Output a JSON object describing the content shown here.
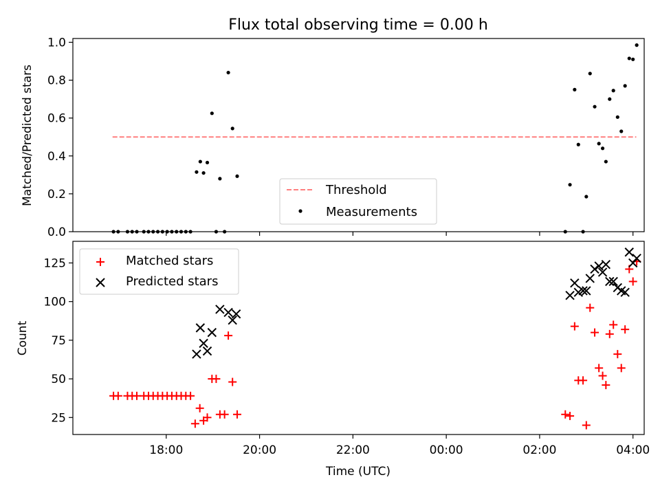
{
  "title": "Flux total observing time = 0.00 h",
  "chart_data": [
    {
      "type": "scatter",
      "panel": "top",
      "title": "Flux total observing time = 0.00 h",
      "xlabel": "",
      "ylabel": "Matched/Predicted stars",
      "ylim": [
        0,
        1.02
      ],
      "yticks": [
        0.0,
        0.2,
        0.4,
        0.6,
        0.8,
        1.0
      ],
      "ytick_labels": [
        "0.0",
        "0.2",
        "0.4",
        "0.6",
        "0.8",
        "1.0"
      ],
      "x_unit": "hours since 16:00 UTC",
      "xlim": [
        0.0,
        12.24
      ],
      "xticks": [
        2,
        4,
        6,
        8,
        10,
        12
      ],
      "grid": false,
      "legend": {
        "placement": "lower-center",
        "entries": [
          {
            "name": "Threshold",
            "color": "#ff7f7f",
            "style": "dashed-line"
          },
          {
            "name": "Measurements",
            "color": "#000000",
            "style": "dot"
          }
        ]
      },
      "threshold": {
        "name": "Threshold",
        "y": 0.5,
        "x_start": 0.85,
        "x_end": 12.07
      },
      "series": [
        {
          "name": "Measurements",
          "color": "#000000",
          "points": [
            [
              0.87,
              0.0
            ],
            [
              0.97,
              0.0
            ],
            [
              1.17,
              0.0
            ],
            [
              1.27,
              0.0
            ],
            [
              1.37,
              0.0
            ],
            [
              1.52,
              0.0
            ],
            [
              1.62,
              0.0
            ],
            [
              1.72,
              0.0
            ],
            [
              1.82,
              0.0
            ],
            [
              1.92,
              0.0
            ],
            [
              2.02,
              0.0
            ],
            [
              2.12,
              0.0
            ],
            [
              2.22,
              0.0
            ],
            [
              2.32,
              0.0
            ],
            [
              2.42,
              0.0
            ],
            [
              2.52,
              0.0
            ],
            [
              2.65,
              0.315
            ],
            [
              2.73,
              0.37
            ],
            [
              2.8,
              0.31
            ],
            [
              2.88,
              0.365
            ],
            [
              2.98,
              0.625
            ],
            [
              3.07,
              0.0
            ],
            [
              3.15,
              0.28
            ],
            [
              3.25,
              0.0
            ],
            [
              3.33,
              0.84
            ],
            [
              3.42,
              0.545
            ],
            [
              3.52,
              0.293
            ],
            [
              10.55,
              0.0
            ],
            [
              10.65,
              0.248
            ],
            [
              10.75,
              0.75
            ],
            [
              10.83,
              0.46
            ],
            [
              10.93,
              0.0
            ],
            [
              11.0,
              0.185
            ],
            [
              11.08,
              0.835
            ],
            [
              11.18,
              0.66
            ],
            [
              11.27,
              0.465
            ],
            [
              11.35,
              0.44
            ],
            [
              11.42,
              0.37
            ],
            [
              11.5,
              0.7
            ],
            [
              11.58,
              0.745
            ],
            [
              11.67,
              0.605
            ],
            [
              11.75,
              0.53
            ],
            [
              11.83,
              0.77
            ],
            [
              11.92,
              0.915
            ],
            [
              12.0,
              0.91
            ],
            [
              12.08,
              0.985
            ]
          ]
        }
      ]
    },
    {
      "type": "scatter",
      "panel": "bottom",
      "title": "",
      "xlabel": "Time (UTC)",
      "ylabel": "Count",
      "ylim": [
        14,
        139
      ],
      "yticks": [
        25,
        50,
        75,
        100,
        125
      ],
      "ytick_labels": [
        "25",
        "50",
        "75",
        "100",
        "125"
      ],
      "x_unit": "hours since 16:00 UTC",
      "xlim": [
        0.0,
        12.24
      ],
      "xticks": [
        2,
        4,
        6,
        8,
        10,
        12
      ],
      "xtick_labels": [
        "18:00",
        "20:00",
        "22:00",
        "00:00",
        "02:00",
        "04:00"
      ],
      "grid": false,
      "legend": {
        "placement": "top-left",
        "entries": [
          {
            "name": "Matched stars",
            "color": "#ff0000",
            "marker": "plus"
          },
          {
            "name": "Predicted stars",
            "color": "#000000",
            "marker": "x"
          }
        ]
      },
      "series": [
        {
          "name": "Matched stars",
          "color": "#ff0000",
          "marker": "plus",
          "points": [
            [
              0.87,
              39
            ],
            [
              0.97,
              39
            ],
            [
              1.17,
              39
            ],
            [
              1.27,
              39
            ],
            [
              1.37,
              39
            ],
            [
              1.52,
              39
            ],
            [
              1.62,
              39
            ],
            [
              1.72,
              39
            ],
            [
              1.82,
              39
            ],
            [
              1.92,
              39
            ],
            [
              2.02,
              39
            ],
            [
              2.12,
              39
            ],
            [
              2.22,
              39
            ],
            [
              2.32,
              39
            ],
            [
              2.42,
              39
            ],
            [
              2.52,
              39
            ],
            [
              2.62,
              21
            ],
            [
              2.72,
              31
            ],
            [
              2.8,
              23
            ],
            [
              2.88,
              25
            ],
            [
              2.98,
              50
            ],
            [
              3.07,
              50
            ],
            [
              3.15,
              27
            ],
            [
              3.25,
              27
            ],
            [
              3.33,
              78
            ],
            [
              3.42,
              48
            ],
            [
              3.52,
              27
            ],
            [
              10.55,
              27
            ],
            [
              10.65,
              26
            ],
            [
              10.75,
              84
            ],
            [
              10.83,
              49
            ],
            [
              10.93,
              49
            ],
            [
              11.0,
              20
            ],
            [
              11.08,
              96
            ],
            [
              11.18,
              80
            ],
            [
              11.27,
              57
            ],
            [
              11.35,
              52
            ],
            [
              11.42,
              46
            ],
            [
              11.5,
              79
            ],
            [
              11.58,
              85
            ],
            [
              11.67,
              66
            ],
            [
              11.75,
              57
            ],
            [
              11.83,
              82
            ],
            [
              11.92,
              121
            ],
            [
              12.0,
              113
            ],
            [
              12.08,
              126
            ]
          ]
        },
        {
          "name": "Predicted stars",
          "color": "#000000",
          "marker": "x",
          "points": [
            [
              2.65,
              66
            ],
            [
              2.73,
              83
            ],
            [
              2.8,
              73
            ],
            [
              2.88,
              68
            ],
            [
              2.98,
              80
            ],
            [
              3.15,
              95
            ],
            [
              3.33,
              93
            ],
            [
              3.42,
              88
            ],
            [
              3.5,
              92
            ],
            [
              10.65,
              104
            ],
            [
              10.75,
              112
            ],
            [
              10.83,
              106
            ],
            [
              10.93,
              107
            ],
            [
              11.0,
              107
            ],
            [
              11.08,
              115
            ],
            [
              11.18,
              121
            ],
            [
              11.27,
              123
            ],
            [
              11.35,
              119
            ],
            [
              11.42,
              124
            ],
            [
              11.5,
              113
            ],
            [
              11.58,
              113
            ],
            [
              11.67,
              109
            ],
            [
              11.75,
              107
            ],
            [
              11.83,
              106
            ],
            [
              11.92,
              132
            ],
            [
              12.0,
              125
            ],
            [
              12.08,
              128
            ]
          ]
        }
      ]
    }
  ]
}
